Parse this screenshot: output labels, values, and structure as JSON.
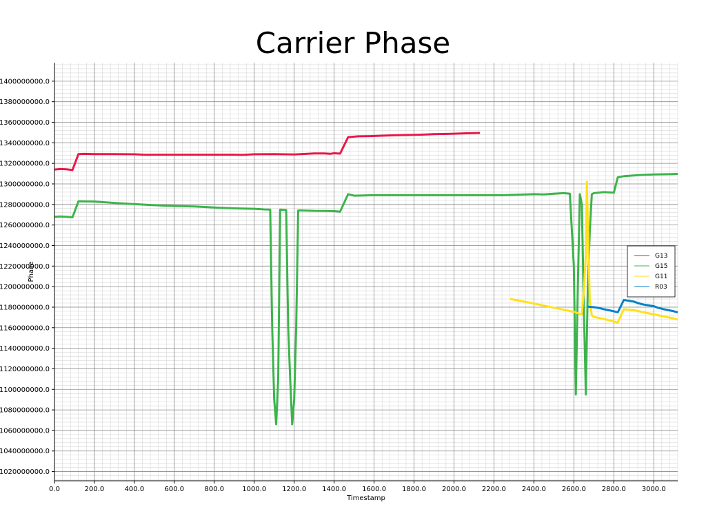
{
  "chart_data": {
    "type": "line",
    "title": "Carrier Phase",
    "xlabel": "Timestamp",
    "ylabel": "Phase",
    "xlim": [
      0,
      3120
    ],
    "ylim": [
      1011000000,
      1418000000
    ],
    "x_ticks": [
      0,
      200,
      400,
      600,
      800,
      1000,
      1200,
      1400,
      1600,
      1800,
      2000,
      2200,
      2400,
      2600,
      2800,
      3000
    ],
    "x_tick_labels": [
      "0.0",
      "200.0",
      "400.0",
      "600.0",
      "800.0",
      "1000.0",
      "1200.0",
      "1400.0",
      "1600.0",
      "1800.0",
      "2000.0",
      "2200.0",
      "2400.0",
      "2600.0",
      "2800.0",
      "3000.0"
    ],
    "y_ticks": [
      1020000000,
      1040000000,
      1060000000,
      1080000000,
      1100000000,
      1120000000,
      1140000000,
      1160000000,
      1180000000,
      1200000000,
      1220000000,
      1240000000,
      1260000000,
      1280000000,
      1300000000,
      1320000000,
      1340000000,
      1360000000,
      1380000000,
      1400000000
    ],
    "y_tick_labels": [
      "1020000000.0",
      "1040000000.0",
      "1060000000.0",
      "1080000000.0",
      "1100000000.0",
      "1120000000.0",
      "1140000000.0",
      "1160000000.0",
      "1180000000.0",
      "1200000000.0",
      "1220000000.0",
      "1240000000.0",
      "1260000000.0",
      "1280000000.0",
      "1300000000.0",
      "1320000000.0",
      "1340000000.0",
      "1360000000.0",
      "1380000000.0",
      "1400000000.0"
    ],
    "grid": true,
    "legend_position": "right",
    "series": [
      {
        "name": "G13",
        "color": "#e8174a",
        "x": [
          0,
          30,
          60,
          90,
          120,
          150,
          200,
          300,
          400,
          460,
          500,
          700,
          900,
          940,
          1000,
          1100,
          1200,
          1300,
          1350,
          1380,
          1400,
          1430,
          1470,
          1520,
          1580,
          1650,
          1700,
          1800,
          1850,
          1900,
          1950,
          2000,
          2050,
          2100,
          2130
        ],
        "y": [
          1314000000,
          1314500000,
          1314200000,
          1313500000,
          1329000000,
          1329200000,
          1329000000,
          1329000000,
          1328800000,
          1328300000,
          1328400000,
          1328400000,
          1328400000,
          1328200000,
          1328800000,
          1329000000,
          1328700000,
          1329600000,
          1329600000,
          1329300000,
          1329800000,
          1329500000,
          1345500000,
          1346300000,
          1346500000,
          1347000000,
          1347300000,
          1347800000,
          1348000000,
          1348400000,
          1348600000,
          1348900000,
          1349200000,
          1349400000,
          1349600000
        ]
      },
      {
        "name": "G15",
        "color": "#3cb44b",
        "x": [
          0,
          30,
          60,
          90,
          120,
          200,
          300,
          400,
          500,
          600,
          700,
          800,
          900,
          1000,
          1050,
          1080,
          1090,
          1100,
          1110,
          1120,
          1130,
          1160,
          1170,
          1180,
          1190,
          1200,
          1210,
          1220,
          1230,
          1300,
          1350,
          1400,
          1430,
          1470,
          1500,
          1600,
          1800,
          2000,
          2200,
          2250,
          2400,
          2450,
          2500,
          2550,
          2580,
          2600,
          2610,
          2620,
          2630,
          2640,
          2650,
          2660,
          2670,
          2680,
          2690,
          2700,
          2750,
          2800,
          2820,
          2850,
          2900,
          2950,
          3000,
          3050,
          3100,
          3120
        ],
        "y": [
          1268000000,
          1268300000,
          1268000000,
          1267500000,
          1283000000,
          1282800000,
          1281500000,
          1280300000,
          1279300000,
          1278500000,
          1278000000,
          1277000000,
          1276200000,
          1275800000,
          1275200000,
          1275000000,
          1160000000,
          1090000000,
          1066000000,
          1110000000,
          1275000000,
          1274500000,
          1160000000,
          1110000000,
          1066000000,
          1090000000,
          1160000000,
          1274000000,
          1274200000,
          1273800000,
          1273700000,
          1273500000,
          1273000000,
          1290000000,
          1288500000,
          1289000000,
          1289000000,
          1289000000,
          1289000000,
          1289000000,
          1290000000,
          1289800000,
          1290500000,
          1291000000,
          1290500000,
          1220000000,
          1095000000,
          1200000000,
          1290000000,
          1280000000,
          1180000000,
          1095000000,
          1200000000,
          1255000000,
          1290000000,
          1291000000,
          1292000000,
          1291500000,
          1306500000,
          1307500000,
          1308200000,
          1308800000,
          1309200000,
          1309400000,
          1309600000,
          1309700000
        ]
      },
      {
        "name": "G11",
        "color": "#ffe119",
        "x": [
          2280,
          2350,
          2400,
          2450,
          2500,
          2550,
          2600,
          2640,
          2650,
          2660,
          2665,
          2670,
          2680,
          2690,
          2700,
          2750,
          2800,
          2820,
          2850,
          2900,
          2950,
          3000,
          3050,
          3100,
          3120
        ],
        "y": [
          1188000000,
          1185500000,
          1183500000,
          1181500000,
          1179500000,
          1177500000,
          1175500000,
          1173000000,
          1196000000,
          1230000000,
          1302000000,
          1262000000,
          1185000000,
          1172000000,
          1170500000,
          1168500000,
          1166000000,
          1165000000,
          1178000000,
          1177000000,
          1175000000,
          1173000000,
          1171000000,
          1169000000,
          1168000000
        ]
      },
      {
        "name": "R03",
        "color": "#0082c8",
        "x": [
          2670,
          2700,
          2720,
          2750,
          2800,
          2820,
          2850,
          2900,
          2920,
          2950,
          3000,
          3020,
          3050,
          3100,
          3120
        ],
        "y": [
          1180500000,
          1180000000,
          1179500000,
          1178000000,
          1176000000,
          1175000000,
          1187000000,
          1185500000,
          1184000000,
          1182500000,
          1181000000,
          1179500000,
          1178000000,
          1176000000,
          1175000000
        ]
      }
    ]
  }
}
